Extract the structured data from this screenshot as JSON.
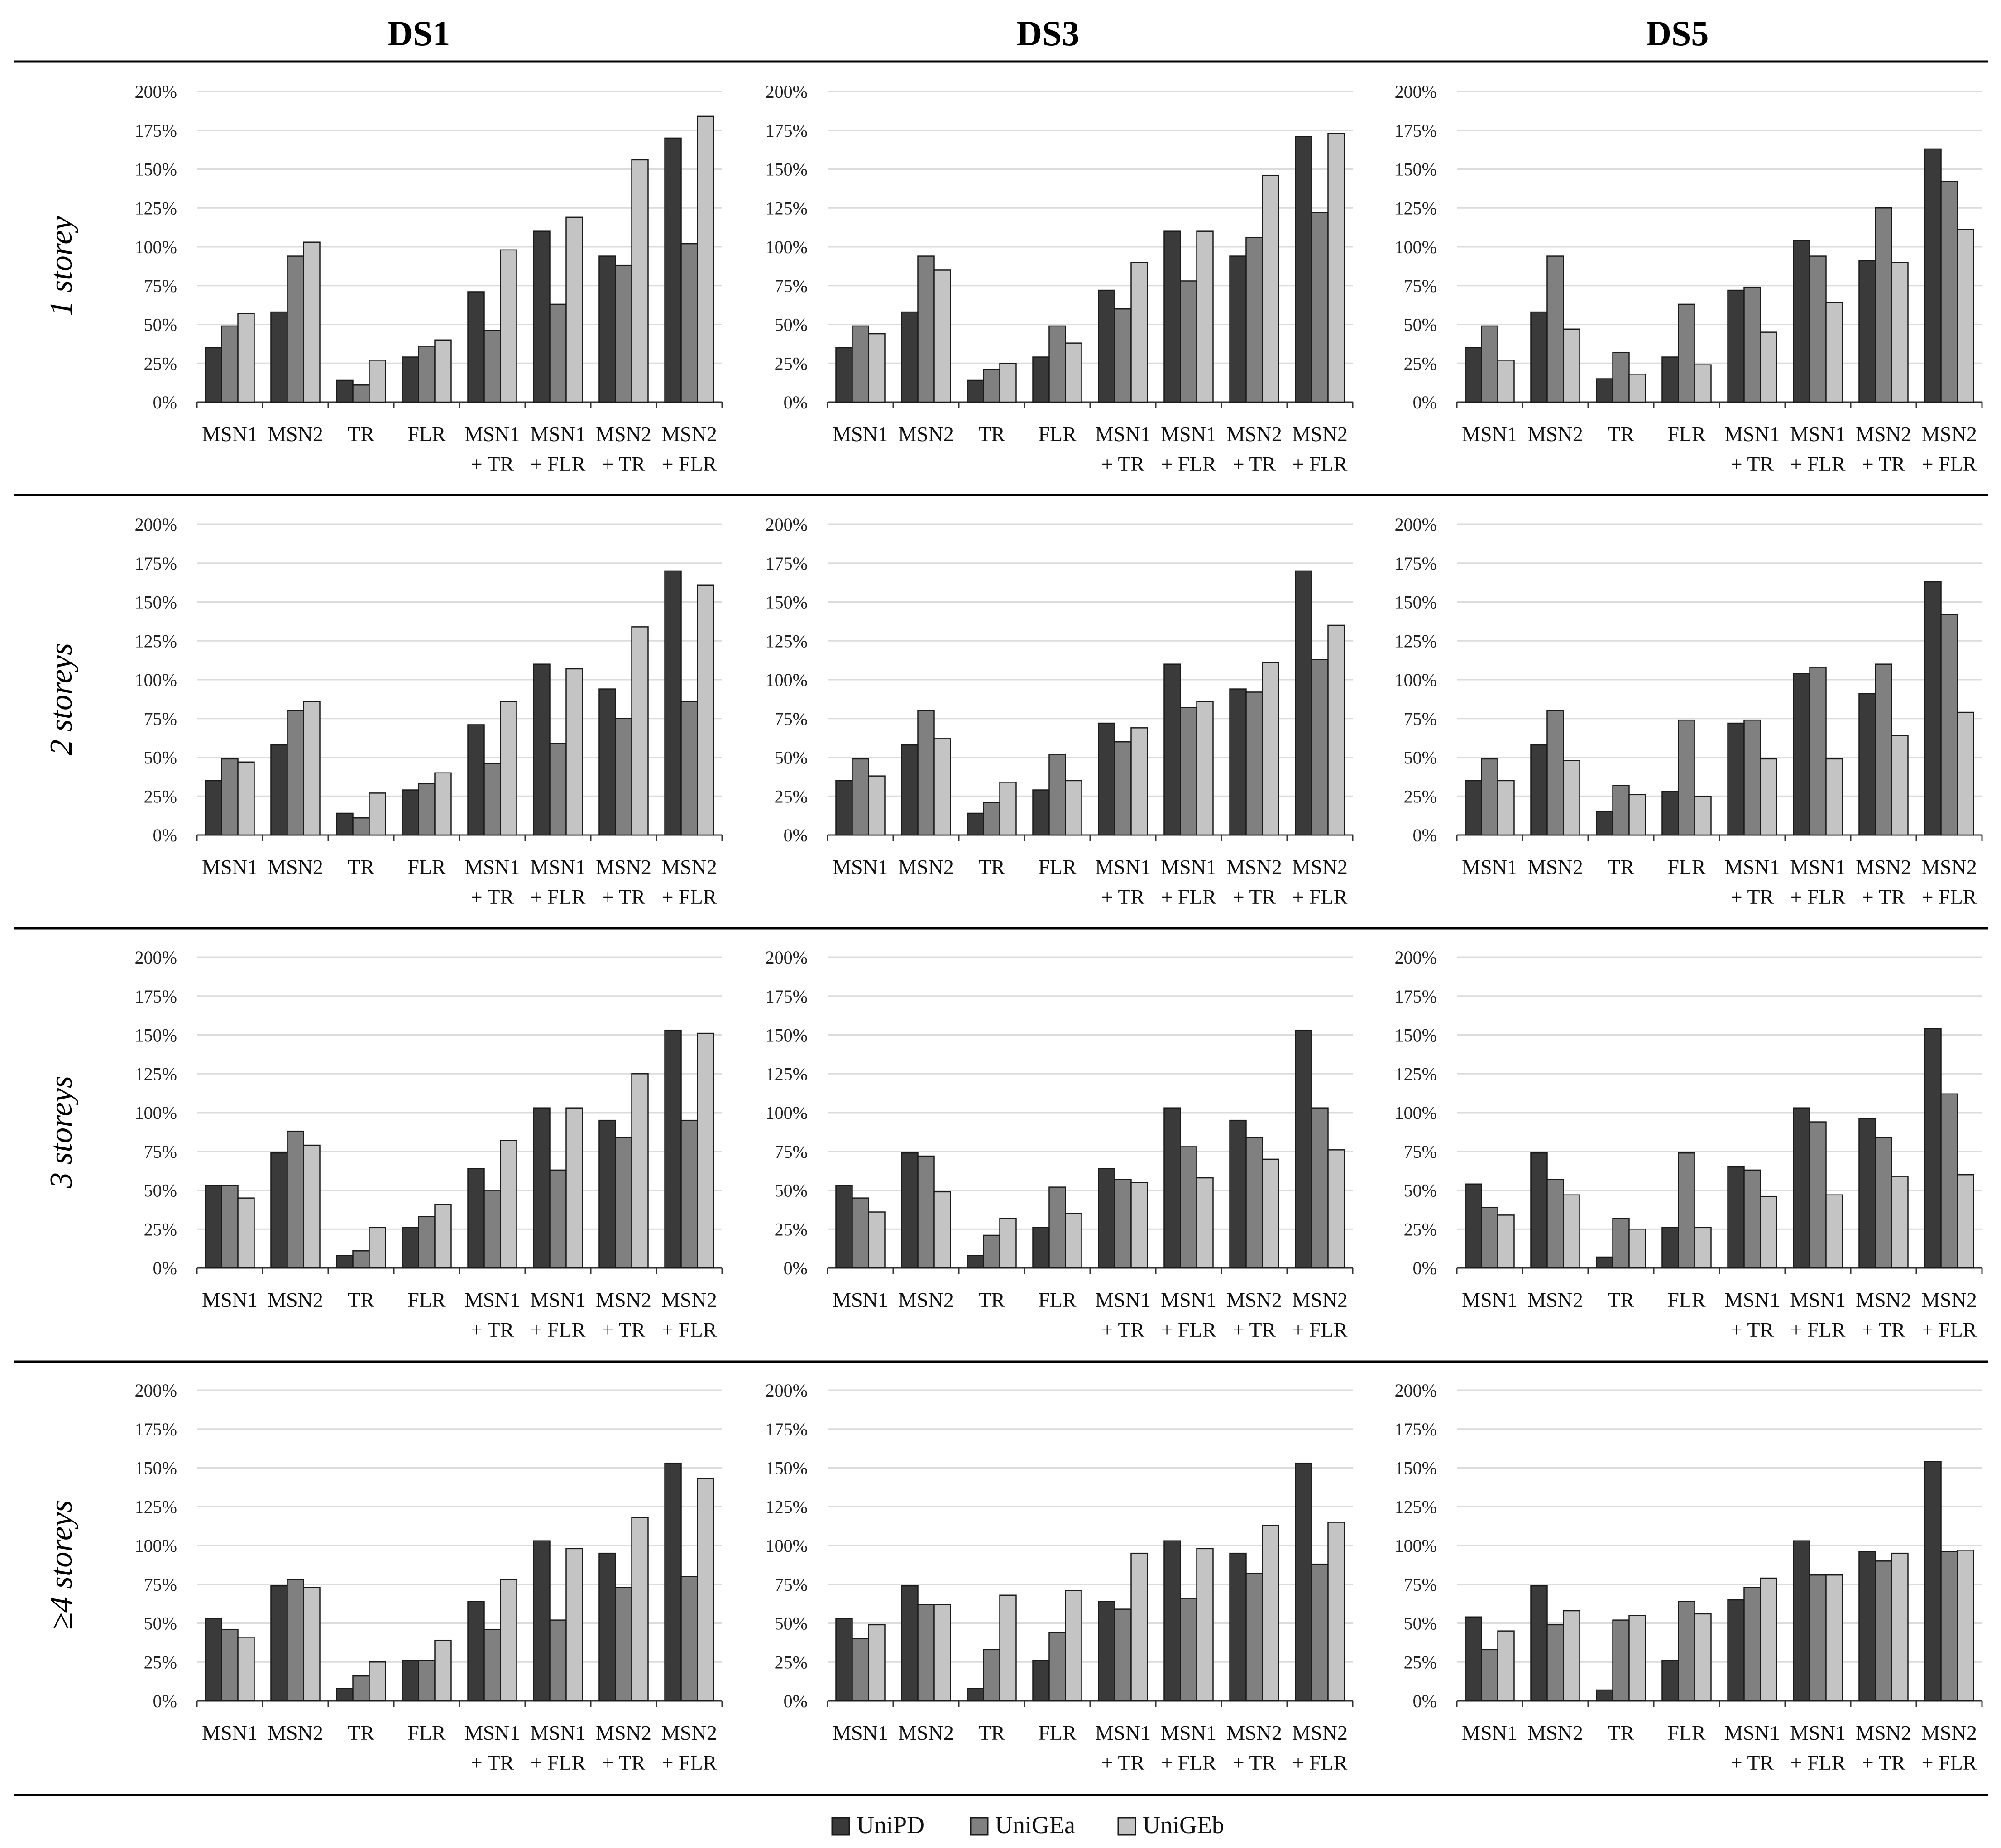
{
  "legend": [
    {
      "name": "UniPD",
      "color": "#3a3a3a"
    },
    {
      "name": "UniGEa",
      "color": "#808080"
    },
    {
      "name": "UniGEb",
      "color": "#c4c4c4"
    }
  ],
  "columns": [
    "DS1",
    "DS3",
    "DS5"
  ],
  "rows": [
    "1 storey",
    "2 storeys",
    "3 storeys",
    "≥4 storeys"
  ],
  "chart_data": {
    "type": "bar",
    "title": "",
    "ylim": [
      0,
      200
    ],
    "yticks": [
      "0%",
      "25%",
      "50%",
      "75%",
      "100%",
      "125%",
      "150%",
      "175%",
      "200%"
    ],
    "categories": [
      [
        "MSN1"
      ],
      [
        "MSN2"
      ],
      [
        "TR"
      ],
      [
        "FLR"
      ],
      [
        "MSN1",
        "+ TR"
      ],
      [
        "MSN1",
        "+ FLR"
      ],
      [
        "MSN2",
        "+ TR"
      ],
      [
        "MSN2",
        "+ FLR"
      ]
    ],
    "series_names": [
      "UniPD",
      "UniGEa",
      "UniGEb"
    ],
    "panels": [
      {
        "row": "1 storey",
        "col": "DS1",
        "values": [
          [
            35,
            49,
            57
          ],
          [
            58,
            94,
            103
          ],
          [
            14,
            11,
            27
          ],
          [
            29,
            36,
            40
          ],
          [
            71,
            46,
            98
          ],
          [
            110,
            63,
            119
          ],
          [
            94,
            88,
            156
          ],
          [
            170,
            102,
            184
          ]
        ]
      },
      {
        "row": "1 storey",
        "col": "DS3",
        "values": [
          [
            35,
            49,
            44
          ],
          [
            58,
            94,
            85
          ],
          [
            14,
            21,
            25
          ],
          [
            29,
            49,
            38
          ],
          [
            72,
            60,
            90
          ],
          [
            110,
            78,
            110
          ],
          [
            94,
            106,
            146
          ],
          [
            171,
            122,
            173
          ]
        ]
      },
      {
        "row": "1 storey",
        "col": "DS5",
        "values": [
          [
            35,
            49,
            27
          ],
          [
            58,
            94,
            47
          ],
          [
            15,
            32,
            18
          ],
          [
            29,
            63,
            24
          ],
          [
            72,
            74,
            45
          ],
          [
            104,
            94,
            64
          ],
          [
            91,
            125,
            90
          ],
          [
            163,
            142,
            111
          ]
        ]
      },
      {
        "row": "2 storeys",
        "col": "DS1",
        "values": [
          [
            35,
            49,
            47
          ],
          [
            58,
            80,
            86
          ],
          [
            14,
            11,
            27
          ],
          [
            29,
            33,
            40
          ],
          [
            71,
            46,
            86
          ],
          [
            110,
            59,
            107
          ],
          [
            94,
            75,
            134
          ],
          [
            170,
            86,
            161
          ]
        ]
      },
      {
        "row": "2 storeys",
        "col": "DS3",
        "values": [
          [
            35,
            49,
            38
          ],
          [
            58,
            80,
            62
          ],
          [
            14,
            21,
            34
          ],
          [
            29,
            52,
            35
          ],
          [
            72,
            60,
            69
          ],
          [
            110,
            82,
            86
          ],
          [
            94,
            92,
            111
          ],
          [
            170,
            113,
            135
          ]
        ]
      },
      {
        "row": "2 storeys",
        "col": "DS5",
        "values": [
          [
            35,
            49,
            35
          ],
          [
            58,
            80,
            48
          ],
          [
            15,
            32,
            26
          ],
          [
            28,
            74,
            25
          ],
          [
            72,
            74,
            49
          ],
          [
            104,
            108,
            49
          ],
          [
            91,
            110,
            64
          ],
          [
            163,
            142,
            79
          ]
        ]
      },
      {
        "row": "3 storeys",
        "col": "DS1",
        "values": [
          [
            53,
            53,
            45
          ],
          [
            74,
            88,
            79
          ],
          [
            8,
            11,
            26
          ],
          [
            26,
            33,
            41
          ],
          [
            64,
            50,
            82
          ],
          [
            103,
            63,
            103
          ],
          [
            95,
            84,
            125
          ],
          [
            153,
            95,
            151
          ]
        ]
      },
      {
        "row": "3 storeys",
        "col": "DS3",
        "values": [
          [
            53,
            45,
            36
          ],
          [
            74,
            72,
            49
          ],
          [
            8,
            21,
            32
          ],
          [
            26,
            52,
            35
          ],
          [
            64,
            57,
            55
          ],
          [
            103,
            78,
            58
          ],
          [
            95,
            84,
            70
          ],
          [
            153,
            103,
            76
          ]
        ]
      },
      {
        "row": "3 storeys",
        "col": "DS5",
        "values": [
          [
            54,
            39,
            34
          ],
          [
            74,
            57,
            47
          ],
          [
            7,
            32,
            25
          ],
          [
            26,
            74,
            26
          ],
          [
            65,
            63,
            46
          ],
          [
            103,
            94,
            47
          ],
          [
            96,
            84,
            59
          ],
          [
            154,
            112,
            60
          ]
        ]
      },
      {
        "row": "≥4 storeys",
        "col": "DS1",
        "values": [
          [
            53,
            46,
            41
          ],
          [
            74,
            78,
            73
          ],
          [
            8,
            16,
            25
          ],
          [
            26,
            26,
            39
          ],
          [
            64,
            46,
            78
          ],
          [
            103,
            52,
            98
          ],
          [
            95,
            73,
            118
          ],
          [
            153,
            80,
            143
          ]
        ]
      },
      {
        "row": "≥4 storeys",
        "col": "DS3",
        "values": [
          [
            53,
            40,
            49
          ],
          [
            74,
            62,
            62
          ],
          [
            8,
            33,
            68
          ],
          [
            26,
            44,
            71
          ],
          [
            64,
            59,
            95
          ],
          [
            103,
            66,
            98
          ],
          [
            95,
            82,
            113
          ],
          [
            153,
            88,
            115
          ]
        ]
      },
      {
        "row": "≥4 storeys",
        "col": "DS5",
        "values": [
          [
            54,
            33,
            45
          ],
          [
            74,
            49,
            58
          ],
          [
            7,
            52,
            55
          ],
          [
            26,
            64,
            56
          ],
          [
            65,
            73,
            79
          ],
          [
            103,
            81,
            81
          ],
          [
            96,
            90,
            95
          ],
          [
            154,
            96,
            97
          ]
        ]
      }
    ]
  }
}
